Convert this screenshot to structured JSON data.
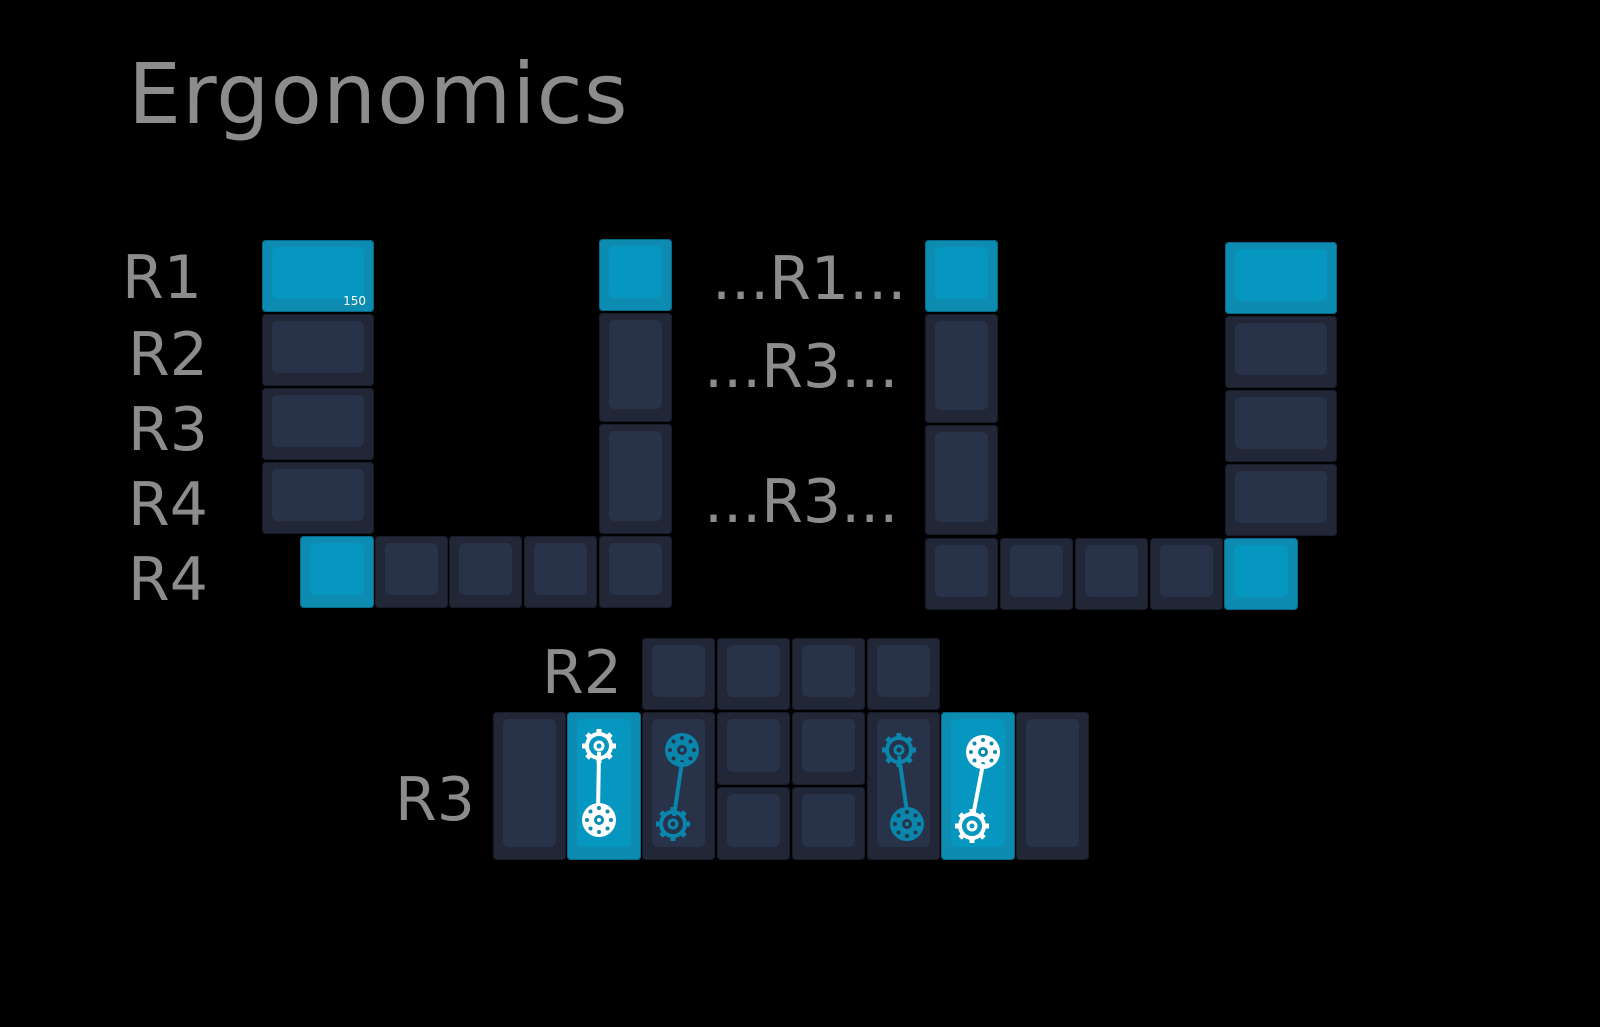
{
  "title": "Ergonomics",
  "row_labels": {
    "left": [
      "R1",
      "R2",
      "R3",
      "R4",
      "R4"
    ],
    "center": [
      "...R1...",
      "...R3...",
      "...R3..."
    ],
    "bottom": [
      "R2",
      "R3"
    ]
  },
  "key_legend": "150",
  "icons": {
    "gear_link_light": "gear-linkage-icon",
    "gear_link_dark": "gear-linkage-icon"
  },
  "colors": {
    "background": "#000000",
    "key_dark": "#212737",
    "key_blue": "#0d8bb0",
    "icon_light": "#ffffff",
    "icon_dark": "#0a86ad",
    "text": "#8c8c8c"
  }
}
